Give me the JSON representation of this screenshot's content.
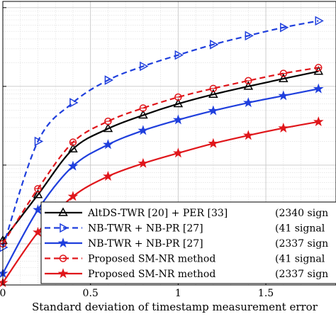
{
  "chart_data": {
    "type": "line",
    "title": "",
    "xlabel": "Standard deviation of timestamp measurement error",
    "ylabel": "",
    "xlim": [
      0,
      1.9
    ],
    "ylim": [
      0.03,
      120
    ],
    "yscale": "log",
    "grid": true,
    "xticks": [
      0,
      0.5,
      1,
      1.5
    ],
    "xtick_labels": [
      "0",
      "0.5",
      "1",
      "1.5"
    ],
    "legend_position": "bottom-right",
    "series": [
      {
        "name": "AltDS-TWR [20] + PER [33]",
        "note": "(2340 sign",
        "color": "#000000",
        "line": "solid",
        "marker": "triangle-up",
        "x": [
          0,
          0.2,
          0.4,
          0.6,
          0.8,
          1.0,
          1.2,
          1.4,
          1.6,
          1.8
        ],
        "y": [
          0.11,
          0.42,
          1.6,
          2.9,
          4.3,
          6.0,
          7.9,
          10.0,
          12.5,
          15.5
        ]
      },
      {
        "name": "NB-TWR + NB-PR [27]",
        "note": "(41 signal",
        "color": "#1f3fdd",
        "line": "dashed",
        "marker": "triangle-right",
        "x": [
          0,
          0.2,
          0.4,
          0.6,
          0.8,
          1.0,
          1.2,
          1.4,
          1.6,
          1.8
        ],
        "y": [
          0.09,
          2.0,
          6.2,
          12.0,
          18.0,
          25.0,
          34.0,
          44.0,
          56.0,
          68.0
        ]
      },
      {
        "name": "NB-TWR + NB-PR [27]",
        "note": "(2337 sign",
        "color": "#1f3fdd",
        "line": "solid",
        "marker": "star",
        "x": [
          0,
          0.2,
          0.4,
          0.6,
          0.8,
          1.0,
          1.2,
          1.4,
          1.6,
          1.8
        ],
        "y": [
          0.042,
          0.27,
          0.97,
          1.82,
          2.75,
          3.75,
          4.9,
          6.2,
          7.6,
          9.3
        ]
      },
      {
        "name": "Proposed SM-NR method",
        "note": "(41 signal",
        "color": "#e0161b",
        "line": "dashed",
        "marker": "circle",
        "x": [
          0,
          0.2,
          0.4,
          0.6,
          0.8,
          1.0,
          1.2,
          1.4,
          1.6,
          1.8
        ],
        "y": [
          0.1,
          0.5,
          1.95,
          3.6,
          5.3,
          7.3,
          9.4,
          11.8,
          14.6,
          17.3
        ]
      },
      {
        "name": "Proposed SM-NR method",
        "note": "(2337 sign",
        "color": "#e0161b",
        "line": "solid",
        "marker": "star",
        "x": [
          0,
          0.2,
          0.4,
          0.6,
          0.8,
          1.0,
          1.2,
          1.4,
          1.6,
          1.8
        ],
        "y": [
          0.032,
          0.14,
          0.4,
          0.72,
          1.05,
          1.42,
          1.88,
          2.38,
          2.95,
          3.55
        ]
      }
    ]
  }
}
